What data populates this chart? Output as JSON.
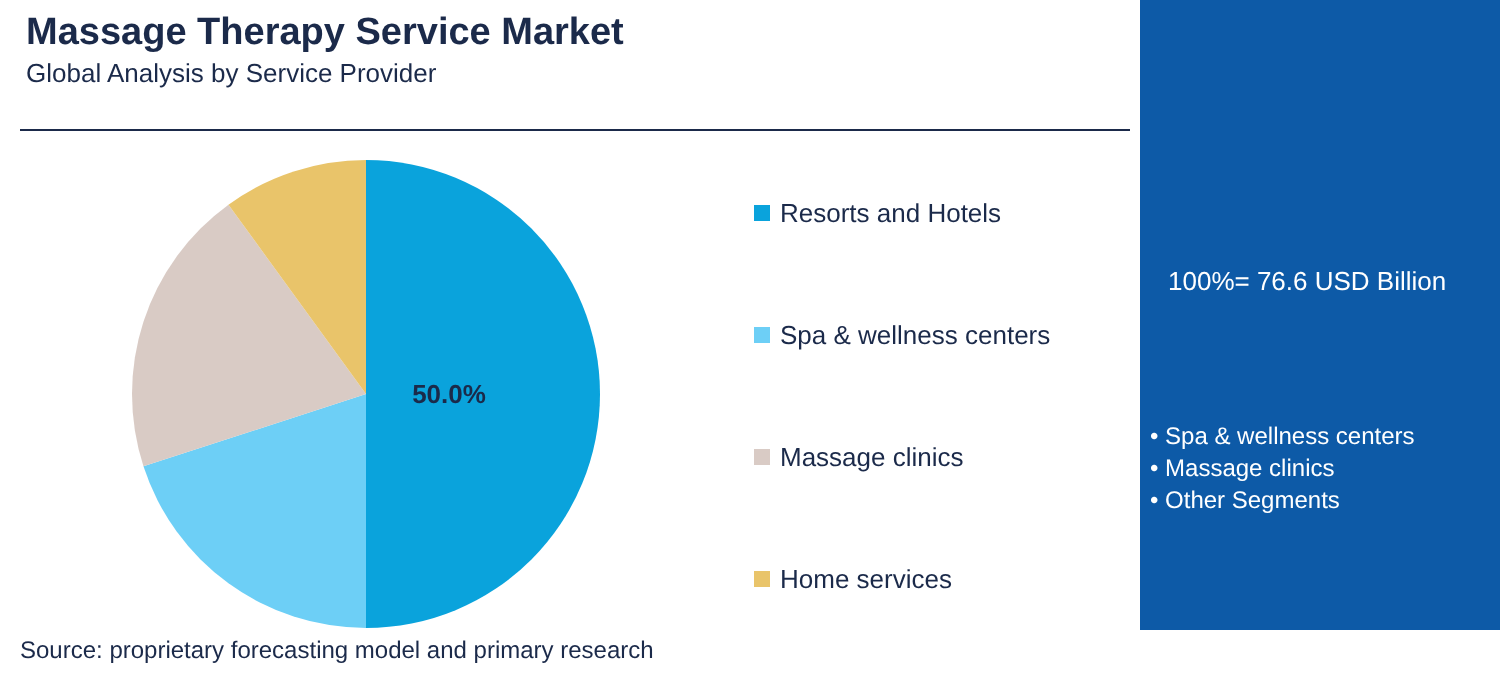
{
  "chart_data": {
    "type": "pie",
    "title": "Massage Therapy Service Market",
    "subtitle": "Global Analysis by Service Provider",
    "categories": [
      "Resorts and Hotels",
      "Spa & wellness centers",
      "Massage clinics",
      "Home services"
    ],
    "values": [
      50,
      20,
      20,
      10
    ],
    "colors": [
      "#0aa3dc",
      "#6dcff6",
      "#d9cbc5",
      "#e9c46a"
    ],
    "value_labels": [
      "50.0%",
      null,
      null,
      null
    ],
    "legend": "right",
    "annotations": [
      "Source: proprietary forecasting model and primary research",
      "100%= 76.6 USD Billion",
      "• Spa & wellness centers",
      "• Massage clinics",
      "• Other Segments"
    ]
  }
}
